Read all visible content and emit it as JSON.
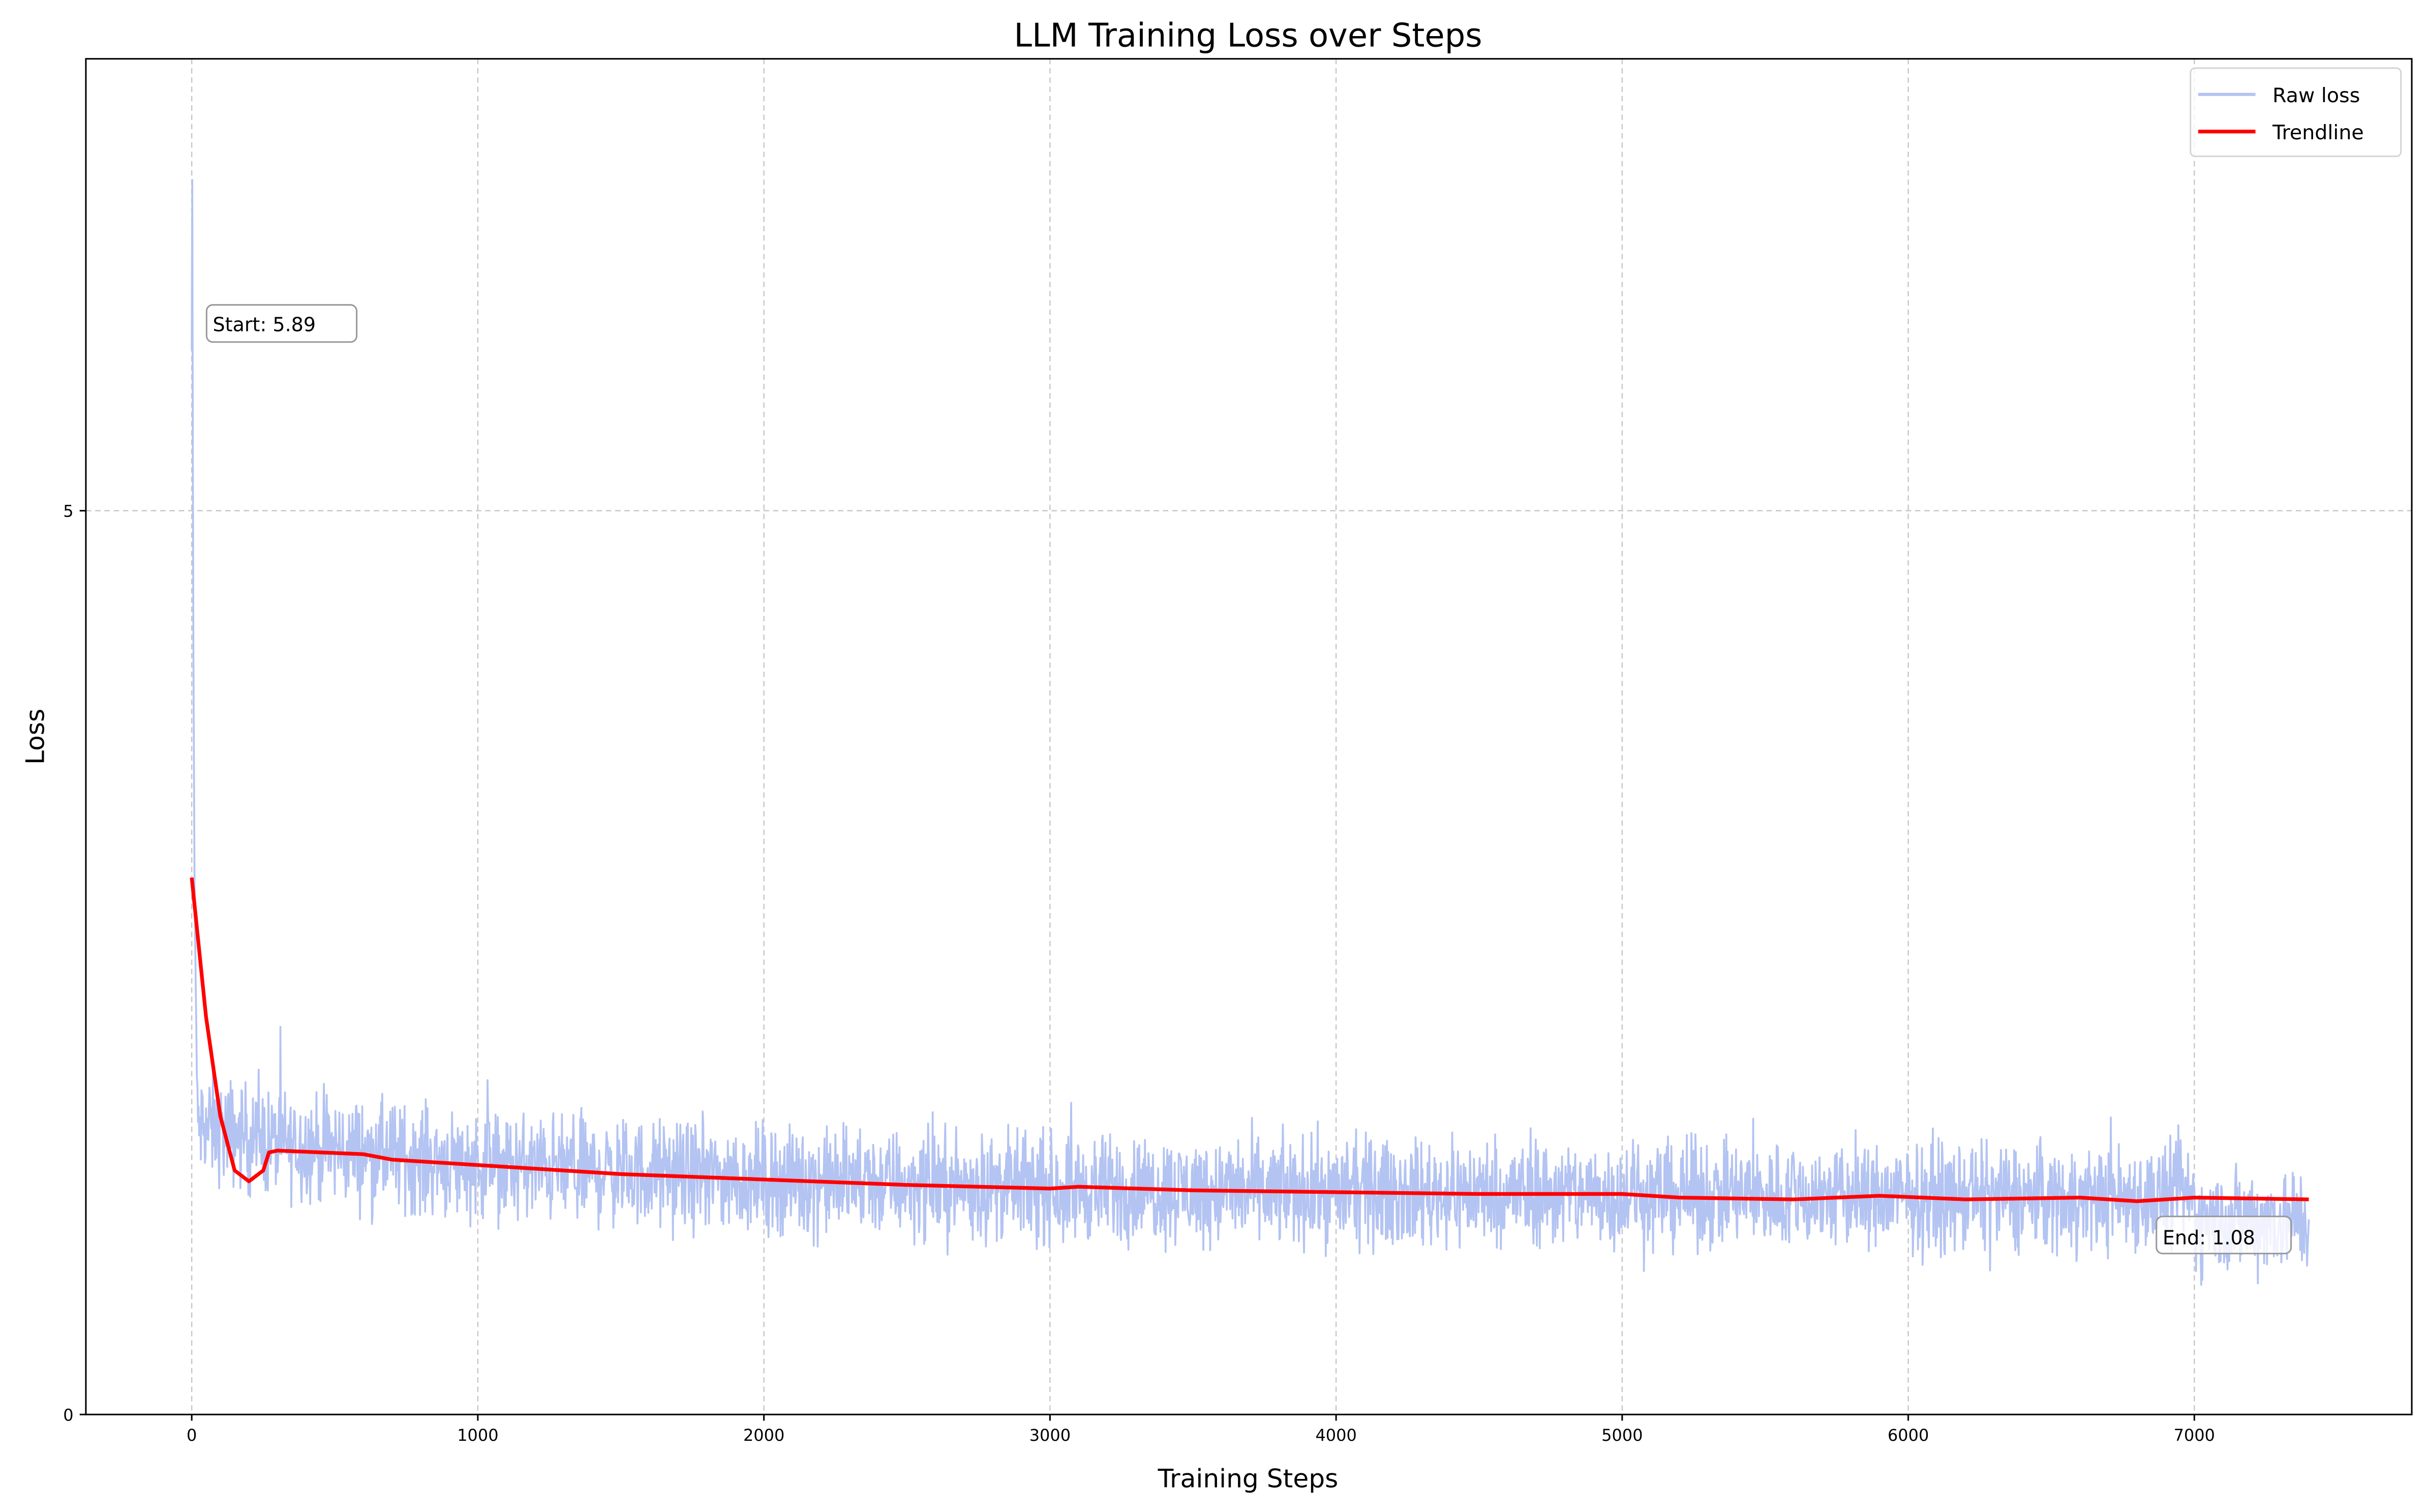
{
  "chart_data": {
    "type": "line",
    "title": "LLM Training Loss over Steps",
    "xlabel": "Training Steps",
    "ylabel": "Loss",
    "xlim": [
      -370,
      7760
    ],
    "ylim": [
      0,
      7.5
    ],
    "xticks": [
      0,
      1000,
      2000,
      3000,
      4000,
      5000,
      6000,
      7000
    ],
    "xtick_labels": [
      "0",
      "1000",
      "2000",
      "3000",
      "4000",
      "5000",
      "6000",
      "7000"
    ],
    "yticks": [
      0,
      5
    ],
    "ytick_labels": [
      "0",
      "5"
    ],
    "grid": true,
    "legend": {
      "placement": "top-right",
      "entries": [
        "Raw loss",
        "Trendline"
      ]
    },
    "colors": {
      "raw": "#b3c3f2",
      "trend": "#ff0000"
    },
    "series": [
      {
        "name": "Raw loss",
        "description_points": {
          "x": [
            0,
            2,
            5,
            10,
            20,
            300,
            1000,
            2000,
            3000,
            4000,
            5000,
            6000,
            7000,
            7400
          ],
          "y": [
            5.89,
            6.83,
            4.5,
            2.9,
            1.6,
            1.5,
            1.38,
            1.3,
            1.25,
            1.23,
            1.22,
            1.2,
            1.2,
            1.08
          ]
        },
        "noise_band": 0.22
      },
      {
        "name": "Trendline",
        "x": [
          0,
          50,
          100,
          150,
          200,
          250,
          270,
          300,
          600,
          700,
          1000,
          1500,
          2000,
          2500,
          3000,
          3100,
          3500,
          4000,
          4500,
          5000,
          5200,
          5600,
          5900,
          6200,
          6600,
          6800,
          7000,
          7400
        ],
        "y": [
          2.97,
          2.2,
          1.65,
          1.35,
          1.29,
          1.35,
          1.45,
          1.46,
          1.44,
          1.41,
          1.38,
          1.33,
          1.3,
          1.27,
          1.25,
          1.26,
          1.24,
          1.23,
          1.22,
          1.22,
          1.2,
          1.19,
          1.21,
          1.19,
          1.2,
          1.18,
          1.2,
          1.19
        ]
      }
    ],
    "annotations": [
      {
        "text": "Start: 5.89",
        "x": 0,
        "y": 5.89
      },
      {
        "text": "End: 1.08",
        "x": 7400,
        "y": 1.08
      }
    ]
  }
}
